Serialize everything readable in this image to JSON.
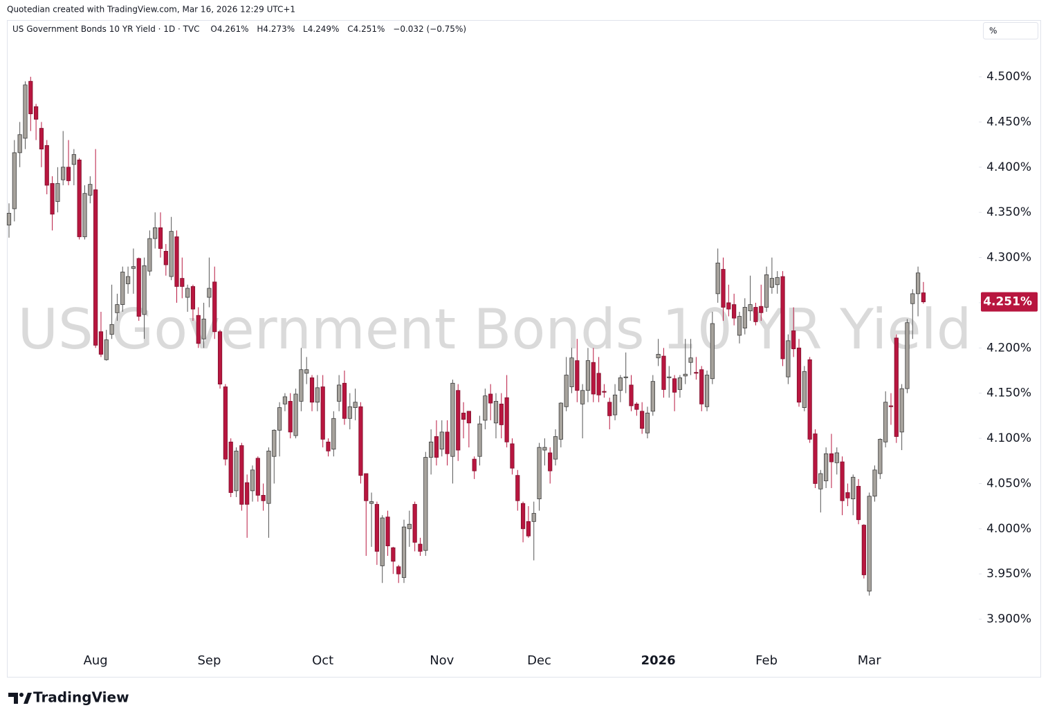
{
  "header": {
    "credit": "Quotedian created with TradingView.com, Mar 16, 2026 12:29 UTC+1"
  },
  "footer": {
    "brand": "TradingView"
  },
  "chart_data": {
    "type": "candlestick",
    "title": "US Government Bonds 10 YR Yield · 1D · TVC",
    "legend_values": [
      "O4.261%",
      "H4.273%",
      "L4.249%",
      "C4.251%",
      "−0.032 (−0.75%)"
    ],
    "watermark": "US Government Bonds 10 YR Yield",
    "scale_unit": "%",
    "up_color": "#a7a39d",
    "down_color": "#b8163f",
    "categories": [
      null,
      null,
      null,
      null,
      null,
      null,
      null,
      null,
      null,
      null,
      null,
      null,
      null,
      null,
      null,
      null,
      "Aug",
      null,
      null,
      null,
      null,
      null,
      null,
      null,
      null,
      null,
      null,
      null,
      null,
      null,
      null,
      null,
      null,
      null,
      null,
      null,
      null,
      "Sep",
      null,
      null,
      null,
      null,
      null,
      null,
      null,
      null,
      null,
      null,
      null,
      null,
      null,
      null,
      null,
      null,
      null,
      null,
      null,
      null,
      "Oct",
      null,
      null,
      null,
      null,
      null,
      null,
      null,
      null,
      null,
      null,
      null,
      null,
      null,
      null,
      null,
      null,
      null,
      null,
      null,
      null,
      null,
      "Nov",
      null,
      null,
      null,
      null,
      null,
      null,
      null,
      null,
      null,
      null,
      null,
      null,
      null,
      null,
      null,
      null,
      null,
      "Dec",
      null,
      null,
      null,
      null,
      null,
      null,
      null,
      null,
      null,
      null,
      null,
      null,
      null,
      null,
      null,
      null,
      null,
      null,
      null,
      null,
      null,
      "2026",
      null,
      null,
      null,
      null,
      null,
      null,
      null,
      null,
      null,
      null,
      null,
      null,
      null,
      null,
      null,
      null,
      null,
      null,
      null,
      "Feb",
      null,
      null,
      null,
      null,
      null,
      null,
      null,
      null,
      null,
      null,
      null,
      null,
      null,
      null,
      null,
      null,
      null,
      null,
      "Mar",
      null,
      null,
      null,
      null,
      null,
      null,
      null,
      null,
      null,
      null
    ],
    "open": [
      4.336,
      4.354,
      4.416,
      4.432,
      4.495,
      4.467,
      4.443,
      4.424,
      4.382,
      4.362,
      4.386,
      4.4,
      4.403,
      4.408,
      4.323,
      4.369,
      4.375,
      4.218,
      4.187,
      4.215,
      4.239,
      4.248,
      4.271,
      4.288,
      4.299,
      4.237,
      4.285,
      4.321,
      4.333,
      4.307,
      4.279,
      4.323,
      4.277,
      4.256,
      4.268,
      4.236,
      4.21,
      4.256,
      4.273,
      4.218,
      4.157,
      4.096,
      4.042,
      4.092,
      4.051,
      4.042,
      4.078,
      4.037,
      4.028,
      4.08,
      4.109,
      4.138,
      4.141,
      4.103,
      4.141,
      4.172,
      4.167,
      4.14,
      4.157,
      4.096,
      4.088,
      4.141,
      4.161,
      4.122,
      4.134,
      4.135,
      4.061,
      4.028,
      4.027,
      3.959,
      4.013,
      3.979,
      3.958,
      3.946,
      4.0,
      4.027,
      3.983,
      3.976,
      4.079,
      4.102,
      4.088,
      4.107,
      4.08,
      4.153,
      4.128,
      4.13,
      4.077,
      4.08,
      4.12,
      4.149,
      4.117,
      4.138,
      4.145,
      4.094,
      4.059,
      4.028,
      4.008,
      4.008,
      4.033,
      4.087,
      4.084,
      4.077,
      4.099,
      4.135,
      4.157,
      4.186,
      4.138,
      4.153,
      4.184,
      4.172,
      4.152,
      4.14,
      4.126,
      4.153,
      4.167,
      4.159,
      4.138,
      4.13,
      4.106,
      4.13,
      4.189,
      4.191,
      4.167,
      4.166,
      4.154,
      4.169,
      4.184,
      4.173,
      4.176,
      4.135,
      4.166,
      4.26,
      4.287,
      4.25,
      4.248,
      4.214,
      4.222,
      4.241,
      4.245,
      4.246,
      4.245,
      4.267,
      4.27,
      4.279,
      4.168,
      4.219,
      4.2,
      4.134,
      4.187,
      4.105,
      4.044,
      4.053,
      4.083,
      4.073,
      4.074,
      4.04,
      4.033,
      4.047,
      4.004,
      3.931,
      4.036,
      4.061,
      4.096,
      4.136,
      4.211,
      4.107,
      4.155,
      4.249,
      4.26,
      4.261
    ],
    "high": [
      4.36,
      4.43,
      4.45,
      4.495,
      4.5,
      4.47,
      4.45,
      4.43,
      4.39,
      4.4,
      4.44,
      4.43,
      4.42,
      4.41,
      4.38,
      4.39,
      4.42,
      4.24,
      4.22,
      4.27,
      4.26,
      4.29,
      4.29,
      4.31,
      4.3,
      4.3,
      4.33,
      4.35,
      4.35,
      4.315,
      4.345,
      4.33,
      4.3,
      4.27,
      4.27,
      4.245,
      4.25,
      4.3,
      4.29,
      4.22,
      4.16,
      4.1,
      4.09,
      4.095,
      4.06,
      4.07,
      4.08,
      4.05,
      4.09,
      4.11,
      4.14,
      4.15,
      4.15,
      4.155,
      4.2,
      4.19,
      4.17,
      4.17,
      4.17,
      4.1,
      4.13,
      4.17,
      4.175,
      4.15,
      4.155,
      4.14,
      4.06,
      4.04,
      4.03,
      4.015,
      4.02,
      3.98,
      3.96,
      4.01,
      4.02,
      4.03,
      3.99,
      4.085,
      4.11,
      4.12,
      4.12,
      4.12,
      4.165,
      4.16,
      4.14,
      4.13,
      4.08,
      4.125,
      4.155,
      4.16,
      4.15,
      4.15,
      4.17,
      4.1,
      4.065,
      4.03,
      4.025,
      4.03,
      4.095,
      4.1,
      4.09,
      4.11,
      4.14,
      4.19,
      4.2,
      4.21,
      4.16,
      4.2,
      4.2,
      4.19,
      4.16,
      4.145,
      4.16,
      4.17,
      4.195,
      4.17,
      4.14,
      4.14,
      4.135,
      4.17,
      4.21,
      4.2,
      4.18,
      4.17,
      4.17,
      4.21,
      4.21,
      4.19,
      4.18,
      4.175,
      4.24,
      4.31,
      4.3,
      4.27,
      4.26,
      4.24,
      4.255,
      4.28,
      4.25,
      4.27,
      4.29,
      4.3,
      4.285,
      4.285,
      4.215,
      4.245,
      4.21,
      4.18,
      4.19,
      4.11,
      4.065,
      4.09,
      4.105,
      4.09,
      4.08,
      4.05,
      4.06,
      4.055,
      4.005,
      4.04,
      4.07,
      4.1,
      4.152,
      4.15,
      4.215,
      4.16,
      4.232,
      4.265,
      4.29,
      4.273
    ],
    "low": [
      4.322,
      4.34,
      4.4,
      4.42,
      4.44,
      4.43,
      4.4,
      4.37,
      4.33,
      4.35,
      4.38,
      4.38,
      4.38,
      4.32,
      4.32,
      4.36,
      4.2,
      4.19,
      4.186,
      4.21,
      4.23,
      4.24,
      4.26,
      4.26,
      4.23,
      4.21,
      4.28,
      4.31,
      4.3,
      4.28,
      4.275,
      4.25,
      4.255,
      4.24,
      4.23,
      4.2,
      4.2,
      4.245,
      4.21,
      4.155,
      4.07,
      4.035,
      4.035,
      4.02,
      3.99,
      4.03,
      4.03,
      4.02,
      3.99,
      4.05,
      4.08,
      4.13,
      4.1,
      4.1,
      4.13,
      4.16,
      4.13,
      4.13,
      4.09,
      4.08,
      4.08,
      4.13,
      4.115,
      4.11,
      4.12,
      4.05,
      3.97,
      3.98,
      3.96,
      3.94,
      3.97,
      3.95,
      3.94,
      3.94,
      3.98,
      3.975,
      3.97,
      3.97,
      4.06,
      4.07,
      4.08,
      4.07,
      4.05,
      4.075,
      4.1,
      4.09,
      4.055,
      4.07,
      4.11,
      4.12,
      4.1,
      4.1,
      4.09,
      4.06,
      4.02,
      3.985,
      3.99,
      3.965,
      4.02,
      4.07,
      4.05,
      4.07,
      4.09,
      4.13,
      4.15,
      4.14,
      4.1,
      4.14,
      4.14,
      4.14,
      4.145,
      4.11,
      4.12,
      4.14,
      4.15,
      4.13,
      4.125,
      4.105,
      4.1,
      4.125,
      4.18,
      4.145,
      4.145,
      4.13,
      4.145,
      4.16,
      4.17,
      4.165,
      4.13,
      4.13,
      4.16,
      4.25,
      4.23,
      4.235,
      4.225,
      4.205,
      4.215,
      4.23,
      4.225,
      4.23,
      4.24,
      4.26,
      4.26,
      4.18,
      4.16,
      4.19,
      4.135,
      4.13,
      4.095,
      4.045,
      4.018,
      4.045,
      4.045,
      4.06,
      4.015,
      4.025,
      4.015,
      4.005,
      3.945,
      3.926,
      4.03,
      4.055,
      4.09,
      4.115,
      4.095,
      4.087,
      4.15,
      4.21,
      4.235,
      4.249
    ],
    "close": [
      4.349,
      4.416,
      4.436,
      4.491,
      4.459,
      4.453,
      4.42,
      4.38,
      4.348,
      4.382,
      4.4,
      4.385,
      4.414,
      4.323,
      4.371,
      4.381,
      4.203,
      4.193,
      4.209,
      4.226,
      4.248,
      4.284,
      4.279,
      4.29,
      4.235,
      4.291,
      4.321,
      4.333,
      4.31,
      4.292,
      4.329,
      4.268,
      4.268,
      4.266,
      4.243,
      4.205,
      4.232,
      4.266,
      4.218,
      4.16,
      4.077,
      4.04,
      4.086,
      4.027,
      4.027,
      4.065,
      4.037,
      4.031,
      4.086,
      4.109,
      4.134,
      4.146,
      4.107,
      4.149,
      4.176,
      4.176,
      4.14,
      4.156,
      4.099,
      4.086,
      4.122,
      4.159,
      4.122,
      4.135,
      4.14,
      4.059,
      4.031,
      4.03,
      3.975,
      4.012,
      3.981,
      3.964,
      3.95,
      4.002,
      4.005,
      3.985,
      3.975,
      4.079,
      4.096,
      4.079,
      4.107,
      4.083,
      4.161,
      4.087,
      4.121,
      4.117,
      4.064,
      4.116,
      4.147,
      4.139,
      4.141,
      4.115,
      4.096,
      4.067,
      4.031,
      4.0,
      3.992,
      4.017,
      4.09,
      4.09,
      4.064,
      4.102,
      4.139,
      4.17,
      4.189,
      4.153,
      4.153,
      4.186,
      4.149,
      4.148,
      4.151,
      4.125,
      4.148,
      4.167,
      4.168,
      4.136,
      4.132,
      4.111,
      4.128,
      4.163,
      4.193,
      4.154,
      4.168,
      4.151,
      4.167,
      4.171,
      4.189,
      4.172,
      4.138,
      4.17,
      4.227,
      4.294,
      4.245,
      4.243,
      4.233,
      4.235,
      4.245,
      4.248,
      4.229,
      4.239,
      4.281,
      4.277,
      4.278,
      4.188,
      4.208,
      4.199,
      4.14,
      4.174,
      4.099,
      4.05,
      4.061,
      4.083,
      4.074,
      4.084,
      4.031,
      4.034,
      4.057,
      4.01,
      3.949,
      4.036,
      4.065,
      4.099,
      4.14,
      4.135,
      4.102,
      4.155,
      4.228,
      4.26,
      4.283,
      4.251
    ],
    "last_price": {
      "value": 4.251,
      "label": "4.251%"
    },
    "ylim": [
      3.866,
      4.562
    ],
    "yticks": [
      {
        "value": 3.9,
        "label": "3.900%"
      },
      {
        "value": 3.95,
        "label": "3.950%"
      },
      {
        "value": 4.0,
        "label": "4.000%"
      },
      {
        "value": 4.05,
        "label": "4.050%"
      },
      {
        "value": 4.1,
        "label": "4.100%"
      },
      {
        "value": 4.15,
        "label": "4.150%"
      },
      {
        "value": 4.2,
        "label": "4.200%"
      },
      {
        "value": 4.25,
        "label": "4.250%"
      },
      {
        "value": 4.3,
        "label": "4.300%"
      },
      {
        "value": 4.35,
        "label": "4.350%"
      },
      {
        "value": 4.4,
        "label": "4.400%"
      },
      {
        "value": 4.45,
        "label": "4.450%"
      },
      {
        "value": 4.5,
        "label": "4.500%"
      }
    ],
    "grid": false
  }
}
